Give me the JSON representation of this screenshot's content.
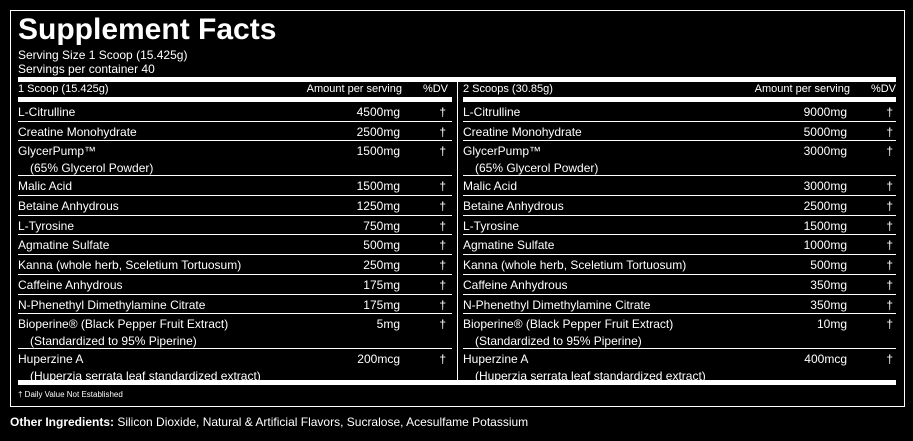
{
  "title": "Supplement Facts",
  "serving_size": "Serving Size 1 Scoop (15.425g)",
  "servings_per_container": "Servings per container 40",
  "columns": [
    {
      "header": "1 Scoop (15.425g)",
      "amount_header": "Amount per serving",
      "dv_header": "%DV",
      "rows": [
        {
          "name": "L-Citrulline",
          "amount": "4500mg",
          "dv": "†"
        },
        {
          "name": "Creatine Monohydrate",
          "amount": "2500mg",
          "dv": "†"
        },
        {
          "name": "GlycerPump™",
          "sub": "(65% Glycerol Powder)",
          "amount": "1500mg",
          "dv": "†"
        },
        {
          "name": "Malic Acid",
          "amount": "1500mg",
          "dv": "†"
        },
        {
          "name": "Betaine Anhydrous",
          "amount": "1250mg",
          "dv": "†"
        },
        {
          "name": "L-Tyrosine",
          "amount": "750mg",
          "dv": "†"
        },
        {
          "name": "Agmatine Sulfate",
          "amount": "500mg",
          "dv": "†"
        },
        {
          "name": "Kanna (whole herb, Sceletium Tortuosum)",
          "amount": "250mg",
          "dv": "†"
        },
        {
          "name": "Caffeine Anhydrous",
          "amount": "175mg",
          "dv": "†"
        },
        {
          "name": "N-Phenethyl Dimethylamine Citrate",
          "amount": "175mg",
          "dv": "†"
        },
        {
          "name": "Bioperine® (Black Pepper Fruit Extract)",
          "sub": "(Standardized to 95% Piperine)",
          "amount": "5mg",
          "dv": "†"
        },
        {
          "name": "Huperzine A",
          "sub": "(Huperzia serrata leaf standardized extract)",
          "amount": "200mcg",
          "dv": "†"
        }
      ]
    },
    {
      "header": "2 Scoops (30.85g)",
      "amount_header": "Amount per serving",
      "dv_header": "%DV",
      "rows": [
        {
          "name": "L-Citrulline",
          "amount": "9000mg",
          "dv": "†"
        },
        {
          "name": "Creatine Monohydrate",
          "amount": "5000mg",
          "dv": "†"
        },
        {
          "name": "GlycerPump™",
          "sub": "(65% Glycerol Powder)",
          "amount": "3000mg",
          "dv": "†"
        },
        {
          "name": "Malic Acid",
          "amount": "3000mg",
          "dv": "†"
        },
        {
          "name": "Betaine Anhydrous",
          "amount": "2500mg",
          "dv": "†"
        },
        {
          "name": "L-Tyrosine",
          "amount": "1500mg",
          "dv": "†"
        },
        {
          "name": "Agmatine Sulfate",
          "amount": "1000mg",
          "dv": "†"
        },
        {
          "name": "Kanna (whole herb, Sceletium Tortuosum)",
          "amount": "500mg",
          "dv": "†"
        },
        {
          "name": "Caffeine Anhydrous",
          "amount": "350mg",
          "dv": "†"
        },
        {
          "name": "N-Phenethyl Dimethylamine Citrate",
          "amount": "350mg",
          "dv": "†"
        },
        {
          "name": "Bioperine® (Black Pepper Fruit Extract)",
          "sub": "(Standardized to 95% Piperine)",
          "amount": "10mg",
          "dv": "†"
        },
        {
          "name": "Huperzine A",
          "sub": "(Huperzia serrata leaf standardized extract)",
          "amount": "400mcg",
          "dv": "†"
        }
      ]
    }
  ],
  "footnote": "† Daily Value Not Established",
  "other_ingredients": {
    "label": "Other Ingredients:",
    "text": " Silicon Dioxide, Natural & Artificial Flavors, Sucralose, Acesulfame Potassium"
  }
}
